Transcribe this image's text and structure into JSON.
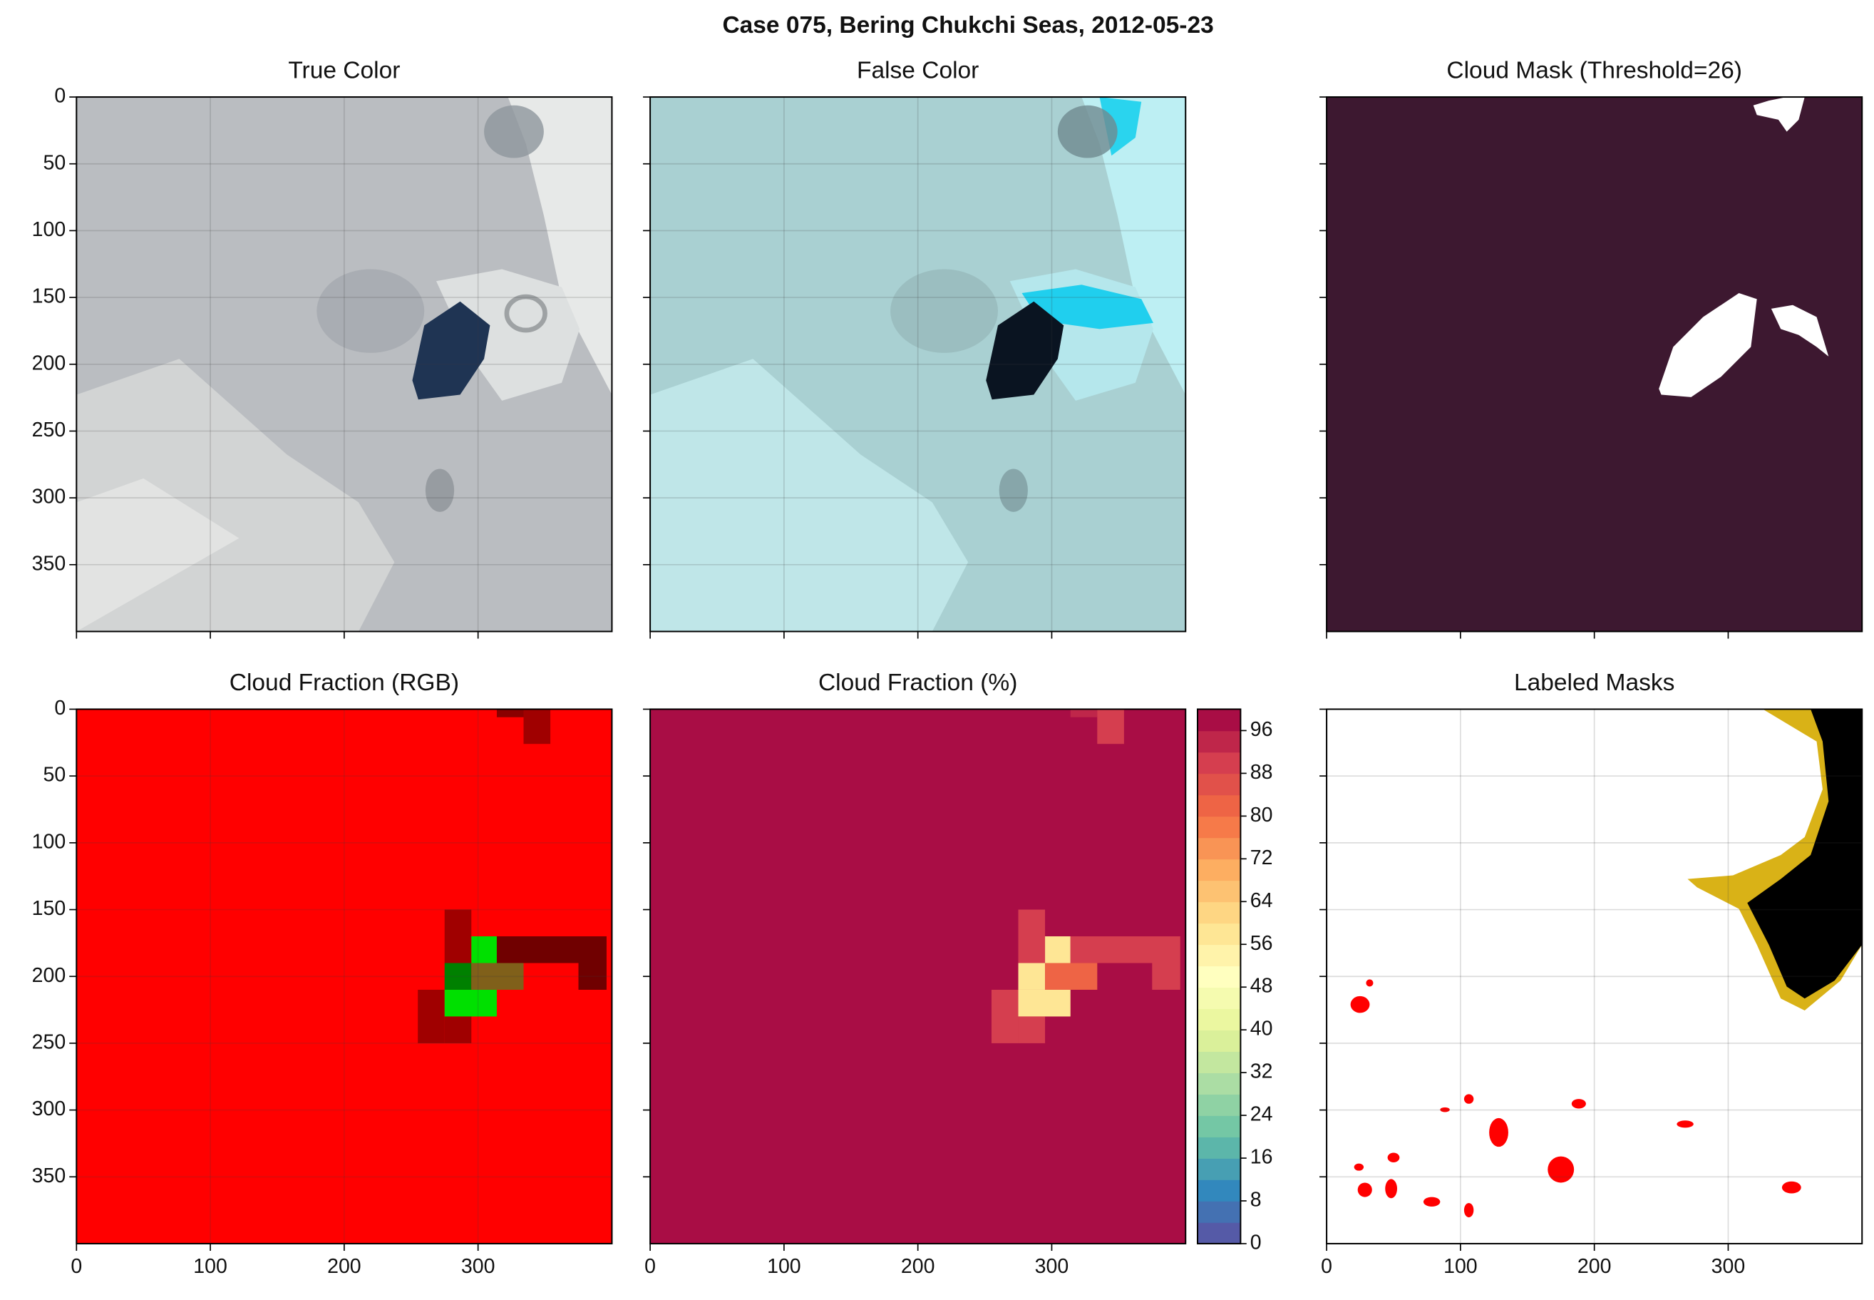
{
  "suptitle": "Case 075, Bering Chukchi Seas, 2012-05-23",
  "chart_data": [
    {
      "type": "image",
      "title": "True Color",
      "xlim": [
        0,
        400
      ],
      "ylim": [
        400,
        0
      ],
      "xticks": [
        0,
        100,
        200,
        300
      ],
      "yticks": [
        0,
        50,
        100,
        150,
        200,
        250,
        300,
        350
      ],
      "grid": true,
      "xticklabels": false,
      "yticklabels": true
    },
    {
      "type": "image",
      "title": "False Color",
      "xlim": [
        0,
        400
      ],
      "ylim": [
        400,
        0
      ],
      "xticks": [
        0,
        100,
        200,
        300
      ],
      "yticks": [
        0,
        50,
        100,
        150,
        200,
        250,
        300,
        350
      ],
      "grid": true,
      "xticklabels": false,
      "yticklabels": false
    },
    {
      "type": "image",
      "title": "Cloud Mask (Threshold=26)",
      "xlim": [
        0,
        400
      ],
      "ylim": [
        400,
        0
      ],
      "xticks": [
        0,
        100,
        200,
        300
      ],
      "yticks": [
        0,
        50,
        100,
        150,
        200,
        250,
        300,
        350
      ],
      "grid": false,
      "xticklabels": false,
      "yticklabels": false
    },
    {
      "type": "rgbgrid",
      "title": "Cloud Fraction (RGB)",
      "xlim": [
        0,
        400
      ],
      "ylim": [
        400,
        0
      ],
      "xticks": [
        0,
        100,
        200,
        300
      ],
      "yticks": [
        0,
        50,
        100,
        150,
        200,
        250,
        300,
        350
      ],
      "grid": true,
      "xticklabels": true,
      "yticklabels": true,
      "patches": [
        {
          "x": [
            0,
            400
          ],
          "y": [
            0,
            400
          ],
          "color": "#ff0000"
        },
        {
          "x": [
            314,
            334
          ],
          "y": [
            0,
            6
          ],
          "color": "#8a0000"
        },
        {
          "x": [
            334,
            354
          ],
          "y": [
            0,
            26
          ],
          "color": "#a00000"
        },
        {
          "x": [
            275,
            295
          ],
          "y": [
            150,
            190
          ],
          "color": "#a00000"
        },
        {
          "x": [
            295,
            314
          ],
          "y": [
            170,
            190
          ],
          "color": "#00e000"
        },
        {
          "x": [
            314,
            396
          ],
          "y": [
            170,
            190
          ],
          "color": "#700000"
        },
        {
          "x": [
            275,
            295
          ],
          "y": [
            190,
            210
          ],
          "color": "#008000"
        },
        {
          "x": [
            295,
            334
          ],
          "y": [
            190,
            210
          ],
          "color": "#80601a"
        },
        {
          "x": [
            375,
            396
          ],
          "y": [
            190,
            210
          ],
          "color": "#700000"
        },
        {
          "x": [
            255,
            275
          ],
          "y": [
            210,
            250
          ],
          "color": "#a00000"
        },
        {
          "x": [
            275,
            314
          ],
          "y": [
            210,
            230
          ],
          "color": "#00e000"
        },
        {
          "x": [
            275,
            295
          ],
          "y": [
            230,
            250
          ],
          "color": "#a00000"
        }
      ]
    },
    {
      "type": "heatmap",
      "title": "Cloud Fraction (%)",
      "xlim": [
        0,
        400
      ],
      "ylim": [
        400,
        0
      ],
      "xticks": [
        0,
        100,
        200,
        300
      ],
      "yticks": [
        0,
        50,
        100,
        150,
        200,
        250,
        300,
        350
      ],
      "grid": false,
      "xticklabels": true,
      "yticklabels": false,
      "patches": [
        {
          "x": [
            0,
            400
          ],
          "y": [
            0,
            400
          ],
          "value": 100
        },
        {
          "x": [
            314,
            334
          ],
          "y": [
            0,
            6
          ],
          "value": 94
        },
        {
          "x": [
            334,
            354
          ],
          "y": [
            0,
            26
          ],
          "value": 90
        },
        {
          "x": [
            275,
            295
          ],
          "y": [
            150,
            190
          ],
          "value": 90
        },
        {
          "x": [
            295,
            314
          ],
          "y": [
            170,
            190
          ],
          "value": 58
        },
        {
          "x": [
            314,
            396
          ],
          "y": [
            170,
            190
          ],
          "value": 88
        },
        {
          "x": [
            275,
            295
          ],
          "y": [
            190,
            210
          ],
          "value": 56
        },
        {
          "x": [
            295,
            334
          ],
          "y": [
            190,
            210
          ],
          "value": 80
        },
        {
          "x": [
            375,
            396
          ],
          "y": [
            190,
            210
          ],
          "value": 88
        },
        {
          "x": [
            255,
            275
          ],
          "y": [
            210,
            250
          ],
          "value": 88
        },
        {
          "x": [
            275,
            314
          ],
          "y": [
            210,
            230
          ],
          "value": 56
        },
        {
          "x": [
            275,
            295
          ],
          "y": [
            230,
            250
          ],
          "value": 88
        }
      ],
      "colorbar": {
        "levels": [
          0,
          4,
          8,
          12,
          16,
          20,
          24,
          28,
          32,
          36,
          40,
          44,
          48,
          52,
          56,
          60,
          64,
          68,
          72,
          76,
          80,
          84,
          88,
          92,
          96,
          100
        ],
        "ticks": [
          0,
          8,
          16,
          24,
          32,
          40,
          48,
          56,
          64,
          72,
          80,
          88,
          96
        ],
        "cmap": [
          "#5e4fa2",
          "#3288bd",
          "#66c2a5",
          "#abdda4",
          "#e6f598",
          "#ffffbf",
          "#fee08b",
          "#fdae61",
          "#f46d43",
          "#d53e4f",
          "#9e0142"
        ]
      }
    },
    {
      "type": "image",
      "title": "Labeled Masks",
      "xlim": [
        0,
        400
      ],
      "ylim": [
        400,
        0
      ],
      "xticks": [
        0,
        100,
        200,
        300
      ],
      "yticks": [
        0,
        50,
        100,
        150,
        200,
        250,
        300,
        350
      ],
      "grid": true,
      "xticklabels": true,
      "yticklabels": false
    }
  ]
}
